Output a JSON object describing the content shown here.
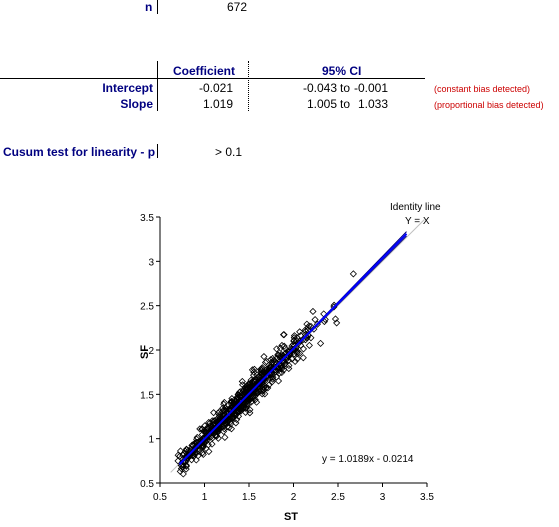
{
  "summary": {
    "n_label": "n",
    "n_value": "672"
  },
  "table": {
    "headers": {
      "coefficient": "Coefficient",
      "ci": "95% CI"
    },
    "rows": [
      {
        "label": "Intercept",
        "coef": "-0.021",
        "ci_low": "-0.043",
        "to": "to",
        "ci_high": "-0.001",
        "note": "(constant bias detected)"
      },
      {
        "label": "Slope",
        "coef": "1.019",
        "ci_low": "1.005",
        "to": "to",
        "ci_high": "1.033",
        "note": "(proportional bias detected)"
      }
    ]
  },
  "cusum": {
    "label": "Cusum test for linearity - p",
    "value": "> 0.1"
  },
  "chart_data": {
    "type": "scatter",
    "xlabel": "ST",
    "ylabel": "SF",
    "xlim": [
      0.5,
      3.5
    ],
    "ylim": [
      0.5,
      3.5
    ],
    "xticks": [
      "0.5",
      "1",
      "1.5",
      "2",
      "2.5",
      "3",
      "3.5"
    ],
    "yticks": [
      "0.5",
      "1",
      "1.5",
      "2",
      "2.5",
      "3",
      "3.5"
    ],
    "grid": false,
    "equation": "y = 1.0189x - 0.0214",
    "identity_label_1": "Identity line",
    "identity_label_2": "Y = X",
    "n_points": 672,
    "x_range": [
      0.7,
      3.27
    ],
    "fit": {
      "slope": 1.0189,
      "intercept": -0.0214
    },
    "ci_slope": [
      1.005,
      1.033
    ],
    "ci_intercept": [
      -0.043,
      -0.001
    ],
    "colors": {
      "points": "#000000",
      "fit_line": "#0000ff",
      "ci_lines": "#000080",
      "identity_line": "#c0c0c0"
    }
  }
}
